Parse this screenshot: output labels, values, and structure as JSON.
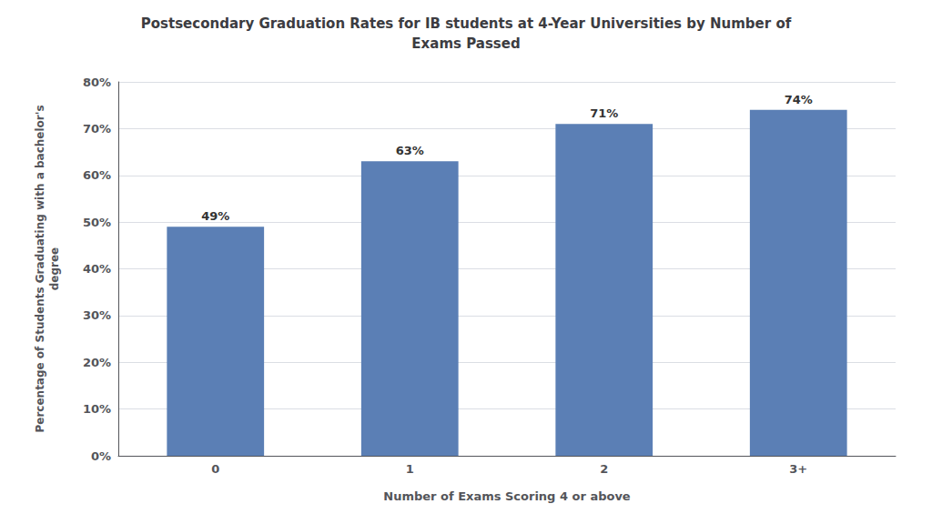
{
  "chart_data": {
    "type": "bar",
    "title": "Postsecondary Graduation Rates for IB students at 4-Year Universities by Number of\nExams Passed",
    "xlabel": "Number of Exams Scoring 4 or above",
    "ylabel": "Percentage of Students Graduating with a bachelor's\ndegree",
    "categories": [
      "0",
      "1",
      "2",
      "3+"
    ],
    "values": [
      0.49,
      0.63,
      0.71,
      0.74
    ],
    "value_labels": [
      "49%",
      "63%",
      "71%",
      "74%"
    ],
    "data_labels": true,
    "color": "#5B7FB5",
    "ylim": [
      0,
      0.8
    ],
    "yticks": [
      {
        "value": 0.0,
        "label": "0%"
      },
      {
        "value": 0.1,
        "label": "10%"
      },
      {
        "value": 0.2,
        "label": "20%"
      },
      {
        "value": 0.3,
        "label": "30%"
      },
      {
        "value": 0.4,
        "label": "40%"
      },
      {
        "value": 0.5,
        "label": "50%"
      },
      {
        "value": 0.6,
        "label": "60%"
      },
      {
        "value": 0.7,
        "label": "70%"
      },
      {
        "value": 0.8,
        "label": "80%"
      }
    ],
    "grid": true
  }
}
